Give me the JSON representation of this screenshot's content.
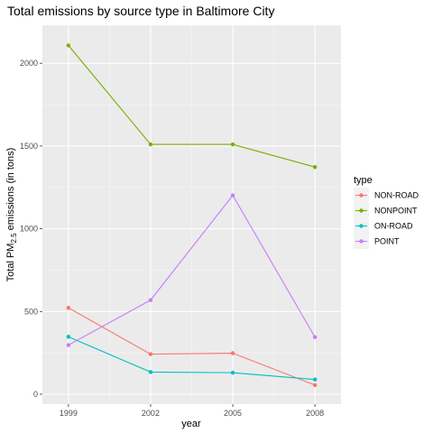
{
  "chart_data": {
    "type": "line",
    "title": "Total emissions by source type in Baltimore City",
    "xlabel": "year",
    "ylabel_main": "Total PM",
    "ylabel_sub": "2.5",
    "ylabel_rest": " emissions (in tons)",
    "x": [
      1999,
      2002,
      2005,
      2008
    ],
    "x_tick_labels": [
      "1999",
      "2002",
      "2005",
      "2008"
    ],
    "y_ticks": [
      0,
      500,
      1000,
      1500,
      2000
    ],
    "y_tick_labels": [
      "0",
      "500",
      "1000",
      "1500",
      "2000"
    ],
    "xlim": [
      1998.05,
      2008.95
    ],
    "ylim": [
      -60,
      2230
    ],
    "grid": true,
    "legend_title": "type",
    "legend_position": "right",
    "series": [
      {
        "name": "NON-ROAD",
        "color": "#F8766D",
        "values": [
          522,
          242,
          248,
          55
        ]
      },
      {
        "name": "NONPOINT",
        "color": "#7CAE00",
        "values": [
          2108,
          1510,
          1510,
          1373
        ]
      },
      {
        "name": "ON-ROAD",
        "color": "#00BFC4",
        "values": [
          347,
          134,
          130,
          89
        ]
      },
      {
        "name": "POINT",
        "color": "#C77CFF",
        "values": [
          297,
          569,
          1202,
          345
        ]
      }
    ]
  }
}
